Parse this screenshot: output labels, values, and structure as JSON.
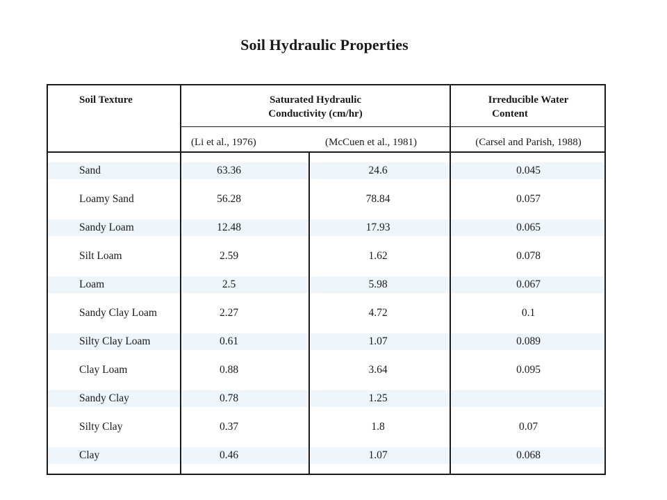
{
  "title": "Soil Hydraulic Properties",
  "headers": {
    "soil_texture": "Soil Texture",
    "conductivity_line1": "Saturated Hydraulic",
    "conductivity_line2": "Conductivity (cm/hr)",
    "water_line1": "Irreducible Water",
    "water_line2": "Content"
  },
  "sources": {
    "li": "(Li et al., 1976)",
    "mccuen": "(McCuen et al., 1981)",
    "carsel": "(Carsel and Parish, 1988)"
  },
  "rows": [
    {
      "texture": "Sand",
      "li": "63.36",
      "mccuen": "24.6",
      "water": "0.045"
    },
    {
      "texture": "Loamy Sand",
      "li": "56.28",
      "mccuen": "78.84",
      "water": "0.057"
    },
    {
      "texture": "Sandy Loam",
      "li": "12.48",
      "mccuen": "17.93",
      "water": "0.065"
    },
    {
      "texture": "Silt Loam",
      "li": "2.59",
      "mccuen": "1.62",
      "water": "0.078"
    },
    {
      "texture": "Loam",
      "li": "2.5",
      "mccuen": "5.98",
      "water": "0.067"
    },
    {
      "texture": "Sandy Clay Loam",
      "li": "2.27",
      "mccuen": "4.72",
      "water": "0.1"
    },
    {
      "texture": "Silty Clay Loam",
      "li": "0.61",
      "mccuen": "1.07",
      "water": "0.089"
    },
    {
      "texture": "Clay Loam",
      "li": "0.88",
      "mccuen": "3.64",
      "water": "0.095"
    },
    {
      "texture": "Sandy Clay",
      "li": "0.78",
      "mccuen": "1.25",
      "water": ""
    },
    {
      "texture": "Silty Clay",
      "li": "0.37",
      "mccuen": "1.8",
      "water": "0.07"
    },
    {
      "texture": "Clay",
      "li": "0.46",
      "mccuen": "1.07",
      "water": "0.068"
    }
  ]
}
